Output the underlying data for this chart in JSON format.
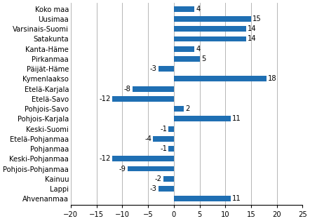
{
  "categories": [
    "Koko maa",
    "Uusimaa",
    "Varsinais-Suomi",
    "Satakunta",
    "Kanta-Häme",
    "Pirkanmaa",
    "Päijät-Häme",
    "Kymenlaakso",
    "Etelä-Karjala",
    "Etelä-Savo",
    "Pohjois-Savo",
    "Pohjois-Karjala",
    "Keski-Suomi",
    "Etelä-Pohjanmaa",
    "Pohjanmaa",
    "Keski-Pohjanmaa",
    "Pohjois-Pohjanmaa",
    "Kainuu",
    "Lappi",
    "Ahvenanmaa"
  ],
  "values": [
    4,
    15,
    14,
    14,
    4,
    5,
    -3,
    18,
    -8,
    -12,
    2,
    11,
    -1,
    -4,
    -1,
    -12,
    -9,
    -2,
    -3,
    11
  ],
  "bar_color": "#1f6fb3",
  "xlim": [
    -20,
    25
  ],
  "xticks": [
    -20,
    -15,
    -10,
    -5,
    0,
    5,
    10,
    15,
    20,
    25
  ],
  "grid_color": "#aaaaaa",
  "label_fontsize": 7.2,
  "value_fontsize": 7.2,
  "tick_fontsize": 7.2,
  "bar_height": 0.55
}
